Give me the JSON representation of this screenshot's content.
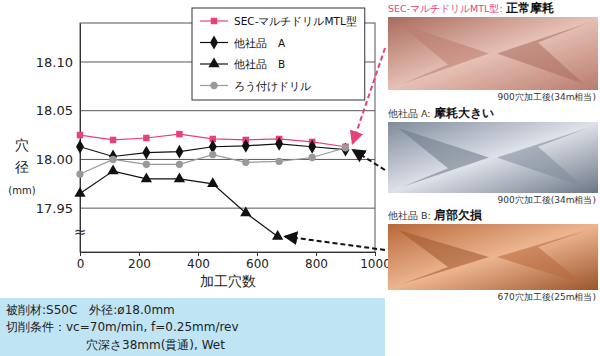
{
  "chart_data": {
    "type": "line",
    "x_label": "加工穴数",
    "y_label": "穴径(mm)",
    "break_mark": "≈",
    "xlim": [
      0,
      1000
    ],
    "xticks": [
      0,
      200,
      400,
      600,
      800,
      1000
    ],
    "ylim": [
      17.905,
      18.14
    ],
    "yticks": [
      17.95,
      {
        "value": 18,
        "label": "18.00"
      },
      18.05,
      {
        "value": 18.1,
        "label": "18.10"
      }
    ],
    "grid": true,
    "legend": "top",
    "series": [
      {
        "name": "SEC-マルチドリルMTL型",
        "color": "#e8417a",
        "marker": "square",
        "x": [
          0,
          112,
          225,
          337,
          450,
          562,
          675,
          787,
          900
        ],
        "values": [
          18.025,
          18.02,
          18.022,
          18.026,
          18.021,
          18.02,
          18.021,
          18.018,
          18.013
        ]
      },
      {
        "name": "他社品　A",
        "color": "#111111",
        "marker": "diamond",
        "x": [
          0,
          112,
          225,
          337,
          450,
          562,
          675,
          787,
          900
        ],
        "values": [
          18.013,
          18.003,
          18.007,
          18.008,
          18.013,
          18.014,
          18.016,
          18.013,
          18.01
        ]
      },
      {
        "name": "他社品　B",
        "color": "#111111",
        "marker": "triangle",
        "x": [
          0,
          112,
          225,
          337,
          450,
          562,
          670
        ],
        "values": [
          17.965,
          17.988,
          17.98,
          17.98,
          17.975,
          17.945,
          17.921
        ]
      },
      {
        "name": "ろう付けドリル",
        "color": "#999999",
        "marker": "circle",
        "x": [
          0,
          112,
          225,
          337,
          450,
          562,
          675,
          787,
          900
        ],
        "values": [
          17.985,
          18.0,
          17.995,
          17.995,
          18.005,
          17.997,
          17.998,
          18.002,
          18.012
        ]
      }
    ],
    "annotations": [
      {
        "label": "SEC-マルチドリルMTL型:",
        "text": "正常摩耗",
        "caption": "900穴加工後(34m相当)"
      },
      {
        "label": "他社品 A:",
        "text": "摩耗大きい",
        "caption": "900穴加工後(34m相当)"
      },
      {
        "label": "他社品 B:",
        "text": "肩部欠損",
        "caption": "670穴加工後(25m相当)"
      }
    ],
    "conditions": [
      "被削材:S50C　外径:ø18.0mm",
      "切削条件：vc=70m/min, f=0.25mm/rev",
      "穴深さ38mm(貫通), Wet"
    ]
  }
}
